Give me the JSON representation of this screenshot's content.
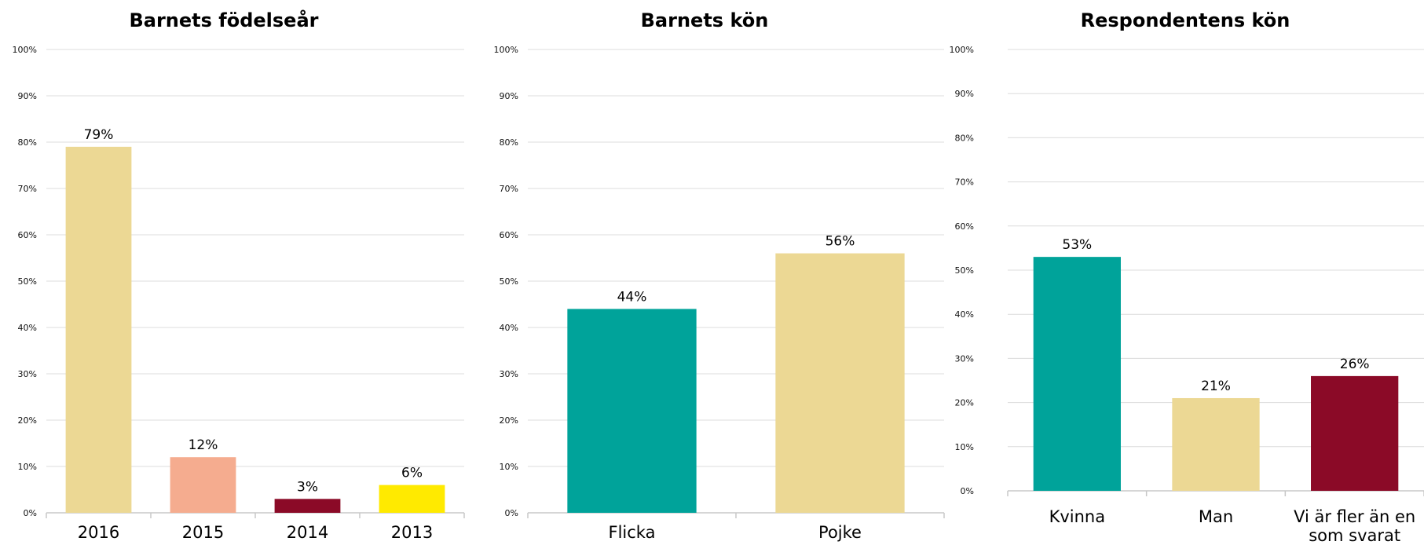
{
  "chart_data": [
    {
      "type": "bar",
      "title": "Barnets födelseår",
      "categories": [
        "2016",
        "2015",
        "2014",
        "2013"
      ],
      "values": [
        79,
        12,
        3,
        6
      ],
      "value_labels": [
        "79%",
        "12%",
        "3%",
        "6%"
      ],
      "colors": [
        "#ecd894",
        "#f5ac8f",
        "#8b0a27",
        "#ffea00"
      ],
      "yticks": [
        "0%",
        "10%",
        "20%",
        "30%",
        "40%",
        "50%",
        "60%",
        "70%",
        "80%",
        "90%",
        "100%"
      ],
      "ylim": [
        0,
        100
      ],
      "grid": true
    },
    {
      "type": "bar",
      "title": "Barnets kön",
      "categories": [
        "Flicka",
        "Pojke"
      ],
      "values": [
        44,
        56
      ],
      "value_labels": [
        "44%",
        "56%"
      ],
      "colors": [
        "#00a39a",
        "#ecd894"
      ],
      "yticks": [
        "0%",
        "10%",
        "20%",
        "30%",
        "40%",
        "50%",
        "60%",
        "70%",
        "80%",
        "90%",
        "100%"
      ],
      "ylim": [
        0,
        100
      ],
      "grid": true
    },
    {
      "type": "bar",
      "title": "Respondentens kön",
      "categories": [
        "Kvinna",
        "Man",
        "Vi är fler än en som svarat"
      ],
      "category_lines": [
        [
          "Kvinna"
        ],
        [
          "Man"
        ],
        [
          "Vi är fler än en",
          "som svarat"
        ]
      ],
      "values": [
        53,
        21,
        26
      ],
      "value_labels": [
        "53%",
        "21%",
        "26%"
      ],
      "colors": [
        "#00a39a",
        "#ecd894",
        "#8b0a27"
      ],
      "yticks": [
        "0%",
        "10%",
        "20%",
        "30%",
        "40%",
        "50%",
        "60%",
        "70%",
        "80%",
        "90%",
        "100%"
      ],
      "ylim": [
        0,
        100
      ],
      "grid": true
    }
  ]
}
